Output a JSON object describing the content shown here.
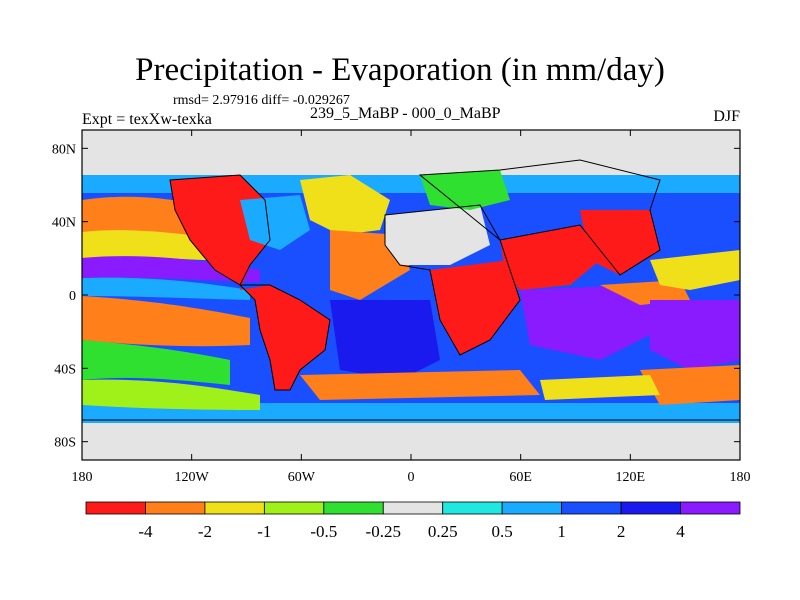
{
  "title": "Precipitation - Evaporation (in mm/day)",
  "stats_line": "rmsd= 2.97916 diff= -0.029267",
  "experiment_label": "Expt = texXw-texka",
  "difference_label": "239_5_MaBP - 000_0_MaBP",
  "season_label": "DJF",
  "map": {
    "projection": "cylindrical equidistant",
    "lon_ticks": [
      "180",
      "120W",
      "60W",
      "0",
      "60E",
      "120E",
      "180"
    ],
    "lat_ticks": [
      "80N",
      "40N",
      "0",
      "40S",
      "80S"
    ],
    "lon_tick_values": [
      -180,
      -120,
      -60,
      0,
      60,
      120,
      180
    ],
    "lat_tick_values": [
      80,
      40,
      0,
      -40,
      -80
    ],
    "lon_range": [
      -180,
      180
    ],
    "lat_range": [
      -90,
      90
    ]
  },
  "colorbar": {
    "orientation": "horizontal",
    "labels": [
      "-4",
      "-2",
      "-1",
      "-0.5",
      "-0.25",
      "0.25",
      "0.5",
      "1",
      "2",
      "4"
    ],
    "colors": [
      "#ff1a1a",
      "#ff7f1a",
      "#f0e01a",
      "#a0f01a",
      "#30e030",
      "#e4e4e4",
      "#20e8e0",
      "#1aaaff",
      "#1a4fff",
      "#1a1aee",
      "#8a1aff"
    ]
  }
}
